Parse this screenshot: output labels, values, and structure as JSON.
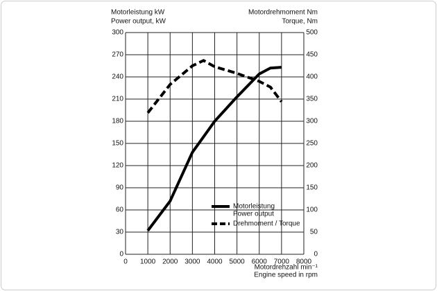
{
  "chart_data": {
    "type": "line",
    "y_label": [
      "Motorleistung kW",
      "Power output, kW"
    ],
    "y2_label": [
      "Motordrehmoment Nm",
      "Torque, Nm"
    ],
    "x_label": [
      "Motordrehzahl min⁻¹",
      "Engine speed in rpm"
    ],
    "x": [
      1000,
      2000,
      3000,
      3500,
      4000,
      5000,
      6000,
      6500,
      7000
    ],
    "series": [
      {
        "name": [
          "Motorleistung",
          "Power output"
        ],
        "color": "#000000",
        "dash": false,
        "values": [
          32,
          72,
          138,
          159,
          180,
          213,
          244,
          252,
          253
        ]
      },
      {
        "name": [
          "Drehmoment / Torque"
        ],
        "color": "#000000",
        "dash": true,
        "axis": "y2",
        "values": [
          319,
          383,
          425,
          437,
          423,
          408,
          390,
          377,
          344
        ]
      }
    ],
    "xlim": [
      0,
      8000
    ],
    "xticks": [
      0,
      1000,
      2000,
      3000,
      4000,
      5000,
      6000,
      7000,
      8000
    ],
    "ylim": [
      0,
      300
    ],
    "yticks": [
      0,
      30,
      60,
      90,
      120,
      150,
      180,
      210,
      240,
      270,
      300
    ],
    "y2lim": [
      0,
      500
    ],
    "y2ticks": [
      0,
      50,
      100,
      150,
      200,
      250,
      300,
      350,
      400,
      450,
      500
    ],
    "grid": true
  }
}
